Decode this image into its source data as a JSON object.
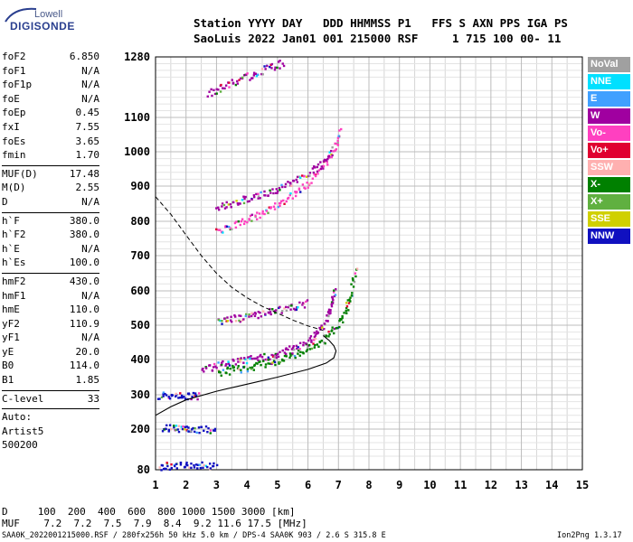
{
  "logo": {
    "top": "Lowell",
    "main": "DIGISONDE"
  },
  "header": {
    "line1": "Station YYYY DAY   DDD HHMMSS P1   FFS S AXN PPS IGA PS",
    "line2": "SaoLuis 2022 Jan01 001 215000 RSF     1 715 100 00- 11"
  },
  "params": {
    "group1": [
      {
        "label": "foF2",
        "value": "6.850"
      },
      {
        "label": "foF1",
        "value": "N/A"
      },
      {
        "label": "foF1p",
        "value": "N/A"
      },
      {
        "label": "foE",
        "value": "N/A"
      },
      {
        "label": "foEp",
        "value": "0.45"
      },
      {
        "label": "fxI",
        "value": "7.55"
      },
      {
        "label": "foEs",
        "value": "3.65"
      },
      {
        "label": "fmin",
        "value": "1.70"
      }
    ],
    "group2": [
      {
        "label": "MUF(D)",
        "value": "17.48"
      },
      {
        "label": "M(D)",
        "value": "2.55"
      },
      {
        "label": "D",
        "value": "N/A"
      }
    ],
    "group3": [
      {
        "label": "h`F",
        "value": "380.0"
      },
      {
        "label": "h`F2",
        "value": "380.0"
      },
      {
        "label": "h`E",
        "value": "N/A"
      },
      {
        "label": "h`Es",
        "value": "100.0"
      }
    ],
    "group4": [
      {
        "label": "hmF2",
        "value": "430.0"
      },
      {
        "label": "hmF1",
        "value": "N/A"
      },
      {
        "label": "hmE",
        "value": "110.0"
      },
      {
        "label": "yF2",
        "value": "110.9"
      },
      {
        "label": "yF1",
        "value": "N/A"
      },
      {
        "label": "yE",
        "value": "20.0"
      },
      {
        "label": "B0",
        "value": "114.0"
      },
      {
        "label": "B1",
        "value": "1.85"
      }
    ],
    "group5": [
      {
        "label": "C-level",
        "value": "33"
      }
    ],
    "auto": [
      "Auto:",
      "Artist5",
      "500200"
    ]
  },
  "legend": [
    {
      "label": "NoVal",
      "color": "#a0a0a0"
    },
    {
      "label": "NNE",
      "color": "#00e0ff"
    },
    {
      "label": "E",
      "color": "#40a0ff"
    },
    {
      "label": "W",
      "color": "#a000a0"
    },
    {
      "label": "Vo-",
      "color": "#ff40c0"
    },
    {
      "label": "Vo+",
      "color": "#e00030"
    },
    {
      "label": "SSW",
      "color": "#ffb0b0"
    },
    {
      "label": "X-",
      "color": "#008000"
    },
    {
      "label": "X+",
      "color": "#60b040"
    },
    {
      "label": "SSE",
      "color": "#d0d000"
    },
    {
      "label": "NNW",
      "color": "#1010c0"
    }
  ],
  "chart_data": {
    "type": "scatter",
    "x_ticks": [
      "1",
      "2",
      "3",
      "4",
      "5",
      "6",
      "7",
      "8",
      "9",
      "10",
      "11",
      "12",
      "13",
      "14",
      "15"
    ],
    "y_ticks": [
      "80",
      "200",
      "300",
      "400",
      "500",
      "600",
      "700",
      "800",
      "900",
      "1000",
      "1100",
      "1280"
    ],
    "xlim": [
      1,
      15
    ],
    "ylim": [
      80,
      1280
    ],
    "y_values": [
      80,
      200,
      300,
      400,
      500,
      600,
      700,
      800,
      900,
      1000,
      1100,
      1280
    ],
    "traces": [
      {
        "name": "o-trace F2",
        "color": "#a000a0",
        "points": [
          [
            2.5,
            375
          ],
          [
            3,
            385
          ],
          [
            3.5,
            393
          ],
          [
            4,
            400
          ],
          [
            4.5,
            410
          ],
          [
            5,
            420
          ],
          [
            5.5,
            435
          ],
          [
            6,
            455
          ],
          [
            6.3,
            480
          ],
          [
            6.6,
            520
          ],
          [
            6.75,
            560
          ],
          [
            6.85,
            610
          ]
        ]
      },
      {
        "name": "x-trace F2",
        "color": "#008000",
        "points": [
          [
            3,
            365
          ],
          [
            3.5,
            372
          ],
          [
            4,
            380
          ],
          [
            4.5,
            390
          ],
          [
            5,
            400
          ],
          [
            5.5,
            415
          ],
          [
            6,
            435
          ],
          [
            6.5,
            460
          ],
          [
            6.9,
            495
          ],
          [
            7.2,
            540
          ],
          [
            7.4,
            600
          ],
          [
            7.55,
            670
          ]
        ]
      },
      {
        "name": "2nd hop",
        "color": "#a000a0",
        "points": [
          [
            3,
            510
          ],
          [
            3.5,
            520
          ],
          [
            4,
            528
          ],
          [
            4.5,
            537
          ],
          [
            5,
            547
          ],
          [
            5.5,
            556
          ],
          [
            6,
            566
          ]
        ]
      },
      {
        "name": "2nd hop x",
        "color": "#ff40c0",
        "points": [
          [
            3,
            770
          ],
          [
            3.5,
            790
          ],
          [
            4,
            805
          ],
          [
            4.5,
            825
          ],
          [
            5,
            850
          ],
          [
            5.5,
            880
          ],
          [
            6,
            910
          ],
          [
            6.5,
            960
          ],
          [
            6.9,
            1020
          ],
          [
            7.05,
            1070
          ]
        ]
      },
      {
        "name": "3rd hop",
        "color": "#a000a0",
        "points": [
          [
            3,
            840
          ],
          [
            3.5,
            855
          ],
          [
            4,
            868
          ],
          [
            4.5,
            880
          ],
          [
            5,
            895
          ],
          [
            5.5,
            915
          ],
          [
            6,
            940
          ],
          [
            6.5,
            970
          ],
          [
            6.8,
            1010
          ]
        ]
      },
      {
        "name": "top hop",
        "color": "#a000a0",
        "points": [
          [
            2.7,
            1170
          ],
          [
            3.2,
            1195
          ],
          [
            3.7,
            1215
          ],
          [
            4.2,
            1230
          ],
          [
            4.7,
            1250
          ],
          [
            5.2,
            1265
          ]
        ]
      },
      {
        "name": "Es",
        "color": "#1010c0",
        "points": [
          [
            1.1,
            90
          ],
          [
            1.5,
            95
          ],
          [
            2,
            98
          ],
          [
            2.5,
            97
          ],
          [
            3,
            93
          ]
        ]
      },
      {
        "name": "Es2",
        "color": "#1010c0",
        "points": [
          [
            1.1,
            300
          ],
          [
            1.5,
            302
          ],
          [
            2,
            300
          ],
          [
            2.4,
            299
          ]
        ]
      },
      {
        "name": "Es3",
        "color": "#1010c0",
        "points": [
          [
            1.2,
            205
          ],
          [
            1.6,
            204
          ],
          [
            2,
            203
          ],
          [
            2.4,
            202
          ],
          [
            3,
            200
          ]
        ]
      }
    ],
    "profile": [
      [
        1,
        240
      ],
      [
        1.5,
        265
      ],
      [
        2,
        285
      ],
      [
        3,
        310
      ],
      [
        4,
        330
      ],
      [
        5,
        350
      ],
      [
        6,
        372
      ],
      [
        6.6,
        390
      ],
      [
        6.85,
        405
      ],
      [
        6.92,
        425
      ],
      [
        6.85,
        440
      ],
      [
        6.7,
        455
      ],
      [
        6.5,
        470
      ]
    ],
    "muf_curve": [
      [
        1,
        870
      ],
      [
        1.5,
        820
      ],
      [
        2,
        760
      ],
      [
        2.5,
        700
      ],
      [
        3,
        650
      ],
      [
        3.5,
        610
      ],
      [
        4,
        580
      ],
      [
        4.5,
        555
      ],
      [
        5,
        535
      ],
      [
        5.5,
        515
      ],
      [
        6,
        498
      ],
      [
        6.5,
        485
      ]
    ]
  },
  "bottom": {
    "d_row": "D     100  200  400  600  800 1000 1500 3000 [km]",
    "muf_row": "MUF    7.2  7.2  7.5  7.9  8.4  9.2 11.6 17.5 [MHz]"
  },
  "footer": {
    "left": "SAA0K_2022001215000.RSF / 280fx256h 50 kHz 5.0 km / DPS-4 SAA0K 903 / 2.6 S 315.8 E",
    "right": "Ion2Png 1.3.17"
  }
}
